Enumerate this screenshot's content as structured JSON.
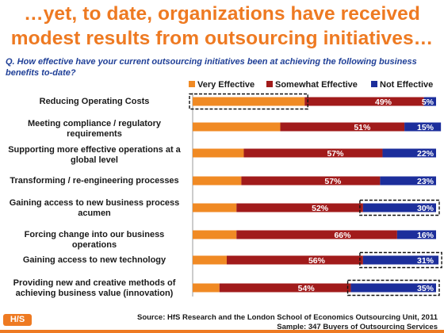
{
  "headline": "…yet, to date, organizations have received modest results from outsourcing initiatives…",
  "question": "Q. How effective have your current outsourcing initiatives been at achieving the following business benefits to-date?",
  "colors": {
    "very_effective": "#f08a24",
    "somewhat_effective": "#a11b1b",
    "not_effective": "#1c2e9b",
    "accent": "#ee7a22"
  },
  "chart_data": {
    "type": "bar",
    "orientation": "horizontal-stacked-100",
    "categories": [
      "Reducing Operating Costs",
      "Meeting compliance / regulatory requirements",
      "Supporting more effective operations at a global level",
      "Transforming / re-engineering processes",
      "Gaining access to new business process acumen",
      "Forcing change into our business operations",
      "Gaining access to new technology",
      "Providing new and creative methods of achieving business value (innovation)"
    ],
    "series": [
      {
        "name": "Very Effective",
        "values": [
          46,
          36,
          21,
          20,
          18,
          18,
          14,
          11
        ]
      },
      {
        "name": "Somewhat Effective",
        "values": [
          49,
          51,
          57,
          57,
          52,
          66,
          56,
          54
        ]
      },
      {
        "name": "Not Effective",
        "values": [
          5,
          15,
          22,
          23,
          30,
          16,
          31,
          35
        ]
      }
    ],
    "data_labels": {
      "Somewhat Effective": [
        "49%",
        "51%",
        "57%",
        "57%",
        "52%",
        "66%",
        "56%",
        "54%"
      ],
      "Not Effective": [
        "5%",
        "15%",
        "22%",
        "23%",
        "30%",
        "16%",
        "31%",
        "35%"
      ]
    },
    "highlighted": [
      {
        "category": "Reducing Operating Costs",
        "series": "Very Effective"
      },
      {
        "category": "Gaining access to new business process acumen",
        "series": "Not Effective"
      },
      {
        "category": "Gaining access to new technology",
        "series": "Not Effective"
      },
      {
        "category": "Providing new and creative methods of achieving business value (innovation)",
        "series": "Not Effective"
      }
    ],
    "xlim": [
      0,
      100
    ],
    "grid": false,
    "legend": "top-right"
  },
  "footer": {
    "logo_text": "H/S",
    "source": "Source:  HfS Research and the London School of Economics Outsourcing Unit, 2011",
    "sample": "Sample: 347 Buyers of Outsourcing Services"
  }
}
